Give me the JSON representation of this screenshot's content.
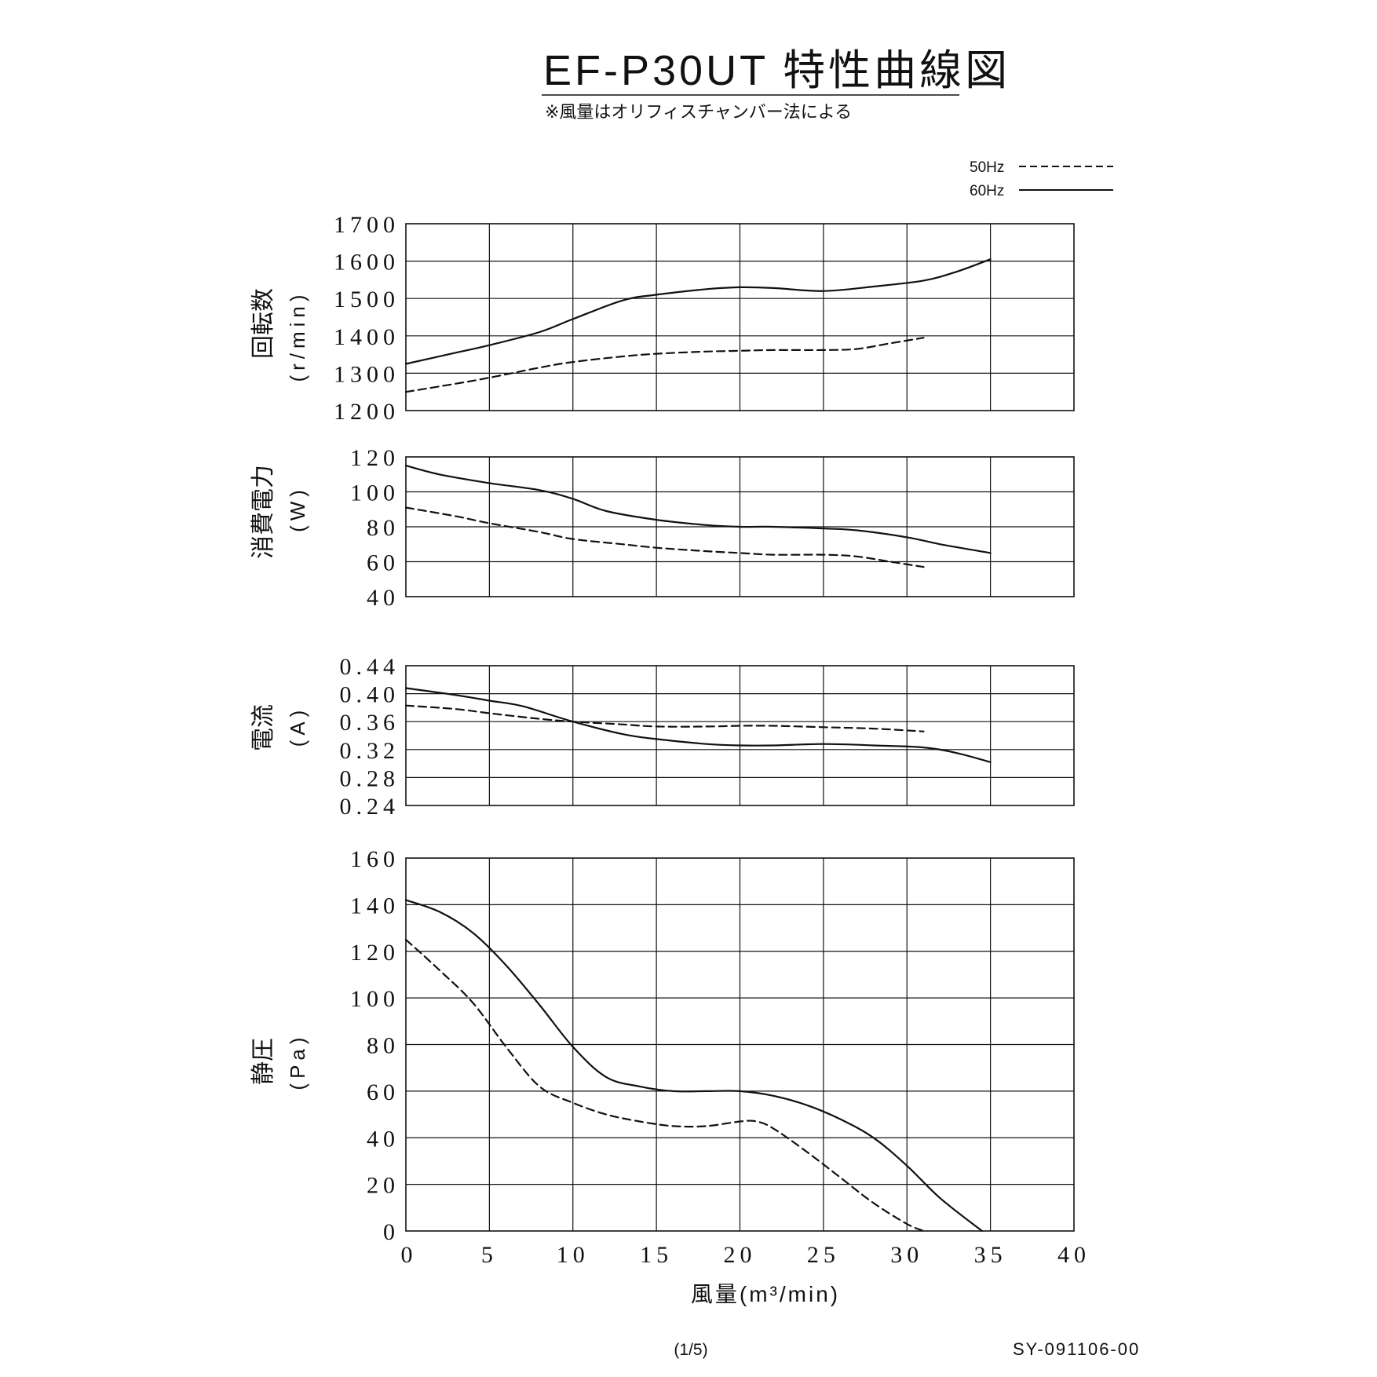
{
  "header": {
    "title": "EF-P30UT 特性曲線図",
    "note": "※風量はオリフィスチャンバー法による"
  },
  "legend": {
    "items": [
      {
        "label": "50Hz",
        "style": "dashed"
      },
      {
        "label": "60Hz",
        "style": "solid"
      }
    ]
  },
  "colors": {
    "ink": "#111111",
    "grid": "#222222",
    "background": "#ffffff"
  },
  "chart_data": [
    {
      "type": "line",
      "ylabel": "回転数",
      "yunit": "(r/min)",
      "ylim": [
        1200,
        1700
      ],
      "yticks": [
        "1200",
        "1300",
        "1400",
        "1500",
        "1600",
        "1700"
      ],
      "xlim": [
        0,
        40
      ],
      "series": [
        {
          "name": "60Hz",
          "style": "solid",
          "x": [
            0,
            3,
            5,
            8,
            10,
            13,
            15,
            18,
            20,
            22,
            25,
            28,
            31,
            33,
            35
          ],
          "y": [
            1325,
            1355,
            1375,
            1410,
            1445,
            1495,
            1510,
            1525,
            1530,
            1528,
            1520,
            1532,
            1548,
            1572,
            1605
          ]
        },
        {
          "name": "50Hz",
          "style": "dashed",
          "x": [
            0,
            3,
            5,
            8,
            10,
            13,
            15,
            18,
            20,
            22,
            25,
            27,
            29,
            31
          ],
          "y": [
            1250,
            1272,
            1288,
            1315,
            1330,
            1345,
            1352,
            1358,
            1360,
            1362,
            1362,
            1365,
            1380,
            1395
          ]
        }
      ]
    },
    {
      "type": "line",
      "ylabel": "消費電力",
      "yunit": "(W)",
      "ylim": [
        40,
        120
      ],
      "yticks": [
        "40",
        "60",
        "80",
        "100",
        "120"
      ],
      "xlim": [
        0,
        40
      ],
      "series": [
        {
          "name": "60Hz",
          "style": "solid",
          "x": [
            0,
            2,
            5,
            8,
            10,
            12,
            15,
            18,
            20,
            22,
            25,
            27,
            30,
            32,
            35
          ],
          "y": [
            115,
            110,
            105,
            101,
            96,
            89,
            84,
            81,
            80,
            80,
            79,
            78,
            74,
            70,
            65
          ]
        },
        {
          "name": "50Hz",
          "style": "dashed",
          "x": [
            0,
            3,
            5,
            8,
            10,
            13,
            15,
            18,
            20,
            22,
            25,
            27,
            29,
            31
          ],
          "y": [
            91,
            86,
            82,
            77,
            73,
            70,
            68,
            66,
            65,
            64,
            64,
            63,
            60,
            57
          ]
        }
      ]
    },
    {
      "type": "line",
      "ylabel": "電流",
      "yunit": "(A)",
      "ylim": [
        0.24,
        0.44
      ],
      "yticks": [
        "0.24",
        "0.28",
        "0.32",
        "0.36",
        "0.40",
        "0.44"
      ],
      "xlim": [
        0,
        40
      ],
      "series": [
        {
          "name": "60Hz",
          "style": "solid",
          "x": [
            0,
            3,
            5,
            7,
            10,
            13,
            15,
            18,
            20,
            22,
            25,
            28,
            31,
            33,
            35
          ],
          "y": [
            0.408,
            0.398,
            0.39,
            0.382,
            0.36,
            0.342,
            0.335,
            0.328,
            0.326,
            0.326,
            0.328,
            0.326,
            0.323,
            0.315,
            0.302
          ]
        },
        {
          "name": "50Hz",
          "style": "dashed",
          "x": [
            0,
            3,
            5,
            8,
            10,
            13,
            15,
            18,
            20,
            22,
            25,
            28,
            31
          ],
          "y": [
            0.383,
            0.378,
            0.372,
            0.364,
            0.36,
            0.356,
            0.353,
            0.353,
            0.354,
            0.354,
            0.352,
            0.35,
            0.346
          ]
        }
      ]
    },
    {
      "type": "line",
      "ylabel": "静圧",
      "yunit": "(Pa)",
      "ylim": [
        0,
        160
      ],
      "yticks": [
        "0",
        "20",
        "40",
        "60",
        "80",
        "100",
        "120",
        "140",
        "160"
      ],
      "xlim": [
        0,
        40
      ],
      "xticks": [
        "0",
        "5",
        "10",
        "15",
        "20",
        "25",
        "30",
        "35",
        "40"
      ],
      "xlabel": "風量(m³/min)",
      "series": [
        {
          "name": "60Hz",
          "style": "solid",
          "x": [
            0,
            2,
            4,
            6,
            8,
            10,
            12,
            14,
            16,
            18,
            20,
            22,
            24,
            26,
            28,
            30,
            32,
            34.5
          ],
          "y": [
            142,
            137,
            128,
            114,
            97,
            79,
            66,
            62,
            60,
            60,
            60,
            58,
            54,
            48,
            40,
            28,
            14,
            0
          ]
        },
        {
          "name": "50Hz",
          "style": "dashed",
          "x": [
            0,
            2,
            4,
            6,
            8,
            10,
            12,
            14,
            16,
            18,
            20,
            21,
            22,
            24,
            26,
            28,
            30,
            31
          ],
          "y": [
            125,
            112,
            98,
            79,
            62,
            55,
            50,
            47,
            45,
            45,
            47,
            47,
            44,
            34,
            23,
            12,
            3,
            0
          ]
        }
      ]
    }
  ],
  "footer": {
    "page": "(1/5)",
    "doc_no": "SY-091106-00"
  }
}
